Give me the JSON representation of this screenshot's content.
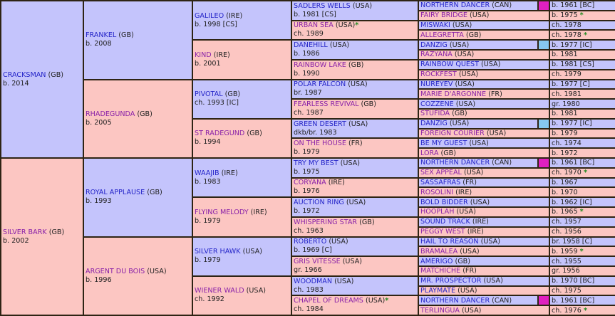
{
  "colors": {
    "sire_bg": "#c4c4fc",
    "dam_bg": "#fcc6c2",
    "swatch_magenta": "#e020c0",
    "swatch_blue": "#86c8f0",
    "star": "#1e8a1e"
  },
  "gen1": [
    {
      "name": "CRACKSMAN",
      "country": "(GB)",
      "info": "b. 2014",
      "sex": "m"
    },
    {
      "name": "SILVER BARK",
      "country": "(GB)",
      "info": "b. 2002",
      "sex": "f"
    }
  ],
  "gen2": [
    {
      "name": "FRANKEL",
      "country": "(GB)",
      "info": "b. 2008",
      "sex": "m"
    },
    {
      "name": "RHADEGUNDA",
      "country": "(GB)",
      "info": "b. 2005",
      "sex": "f"
    },
    {
      "name": "ROYAL APPLAUSE",
      "country": "(GB)",
      "info": "b. 1993",
      "sex": "m"
    },
    {
      "name": "ARGENT DU BOIS",
      "country": "(USA)",
      "info": "b. 1996",
      "sex": "f"
    }
  ],
  "gen3": [
    {
      "name": "GALILEO",
      "country": "(IRE)",
      "info": "b. 1998 [CS]",
      "sex": "m"
    },
    {
      "name": "KIND",
      "country": "(IRE)",
      "info": "b. 2001",
      "sex": "f"
    },
    {
      "name": "PIVOTAL",
      "country": "(GB)",
      "info": "ch. 1993 [IC]",
      "sex": "m"
    },
    {
      "name": "ST RADEGUND",
      "country": "(GB)",
      "info": "b. 1994",
      "sex": "f"
    },
    {
      "name": "WAAJIB",
      "country": "(IRE)",
      "info": "b. 1983",
      "sex": "m"
    },
    {
      "name": "FLYING MELODY",
      "country": "(IRE)",
      "info": "b. 1979",
      "sex": "f"
    },
    {
      "name": "SILVER HAWK",
      "country": "(USA)",
      "info": "b. 1979",
      "sex": "m"
    },
    {
      "name": "WIENER WALD",
      "country": "(USA)",
      "info": "ch. 1992",
      "sex": "f"
    }
  ],
  "gen4": [
    {
      "name": "SADLERS WELLS",
      "country": "(USA)",
      "info": "b. 1981 [CS]",
      "sex": "m"
    },
    {
      "name": "URBAN SEA",
      "country": "(USA)",
      "info": "ch. 1989",
      "sex": "f",
      "star": "*"
    },
    {
      "name": "DANEHILL",
      "country": "(USA)",
      "info": "b. 1986",
      "sex": "m"
    },
    {
      "name": "RAINBOW LAKE",
      "country": "(GB)",
      "info": "b. 1990",
      "sex": "f"
    },
    {
      "name": "POLAR FALCON",
      "country": "(USA)",
      "info": "br. 1987",
      "sex": "m"
    },
    {
      "name": "FEARLESS REVIVAL",
      "country": "(GB)",
      "info": "ch. 1987",
      "sex": "f"
    },
    {
      "name": "GREEN DESERT",
      "country": "(USA)",
      "info": "dkb/br. 1983",
      "sex": "m"
    },
    {
      "name": "ON THE HOUSE",
      "country": "(FR)",
      "info": "b. 1979",
      "sex": "f"
    },
    {
      "name": "TRY MY BEST",
      "country": "(USA)",
      "info": "b. 1975",
      "sex": "m"
    },
    {
      "name": "CORYANA",
      "country": "(IRE)",
      "info": "b. 1976",
      "sex": "f"
    },
    {
      "name": "AUCTION RING",
      "country": "(USA)",
      "info": "b. 1972",
      "sex": "m"
    },
    {
      "name": "WHISPERING STAR",
      "country": "(GB)",
      "info": "ch. 1963",
      "sex": "f"
    },
    {
      "name": "ROBERTO",
      "country": "(USA)",
      "info": "b. 1969 [C]",
      "sex": "m"
    },
    {
      "name": "GRIS VITESSE",
      "country": "(USA)",
      "info": "gr. 1966",
      "sex": "f"
    },
    {
      "name": "WOODMAN",
      "country": "(USA)",
      "info": "ch. 1983",
      "sex": "m"
    },
    {
      "name": "CHAPEL OF DREAMS",
      "country": "(USA)",
      "info": "ch. 1984",
      "sex": "f",
      "star": "*"
    }
  ],
  "gen5": [
    {
      "name": "NORTHERN DANCER",
      "country": "(CAN)",
      "info": "b. 1961 [BC]",
      "sex": "m",
      "swatch": "magenta"
    },
    {
      "name": "FAIRY BRIDGE",
      "country": "(USA)",
      "info": "b. 1975",
      "sex": "f",
      "star": "*"
    },
    {
      "name": "MISWAKI",
      "country": "(USA)",
      "info": "ch. 1978",
      "sex": "m"
    },
    {
      "name": "ALLEGRETTA",
      "country": "(GB)",
      "info": "ch. 1978",
      "sex": "f",
      "star": "*"
    },
    {
      "name": "DANZIG",
      "country": "(USA)",
      "info": "b. 1977 [IC]",
      "sex": "m",
      "swatch": "blue"
    },
    {
      "name": "RAZYANA",
      "country": "(USA)",
      "info": "b. 1981",
      "sex": "f"
    },
    {
      "name": "RAINBOW QUEST",
      "country": "(USA)",
      "info": "b. 1981 [CS]",
      "sex": "m"
    },
    {
      "name": "ROCKFEST",
      "country": "(USA)",
      "info": "ch. 1979",
      "sex": "f"
    },
    {
      "name": "NUREYEV",
      "country": "(USA)",
      "info": "b. 1977 [C]",
      "sex": "m"
    },
    {
      "name": "MARIE D'ARGONNE",
      "country": "(FR)",
      "info": "ch. 1981",
      "sex": "f"
    },
    {
      "name": "COZZENE",
      "country": "(USA)",
      "info": "gr. 1980",
      "sex": "m"
    },
    {
      "name": "STUFIDA",
      "country": "(GB)",
      "info": "b. 1981",
      "sex": "f"
    },
    {
      "name": "DANZIG",
      "country": "(USA)",
      "info": "b. 1977 [IC]",
      "sex": "m",
      "swatch": "blue"
    },
    {
      "name": "FOREIGN COURIER",
      "country": "(USA)",
      "info": "b. 1979",
      "sex": "f"
    },
    {
      "name": "BE MY GUEST",
      "country": "(USA)",
      "info": "ch. 1974",
      "sex": "m"
    },
    {
      "name": "LORA",
      "country": "(GB)",
      "info": "b. 1972",
      "sex": "f"
    },
    {
      "name": "NORTHERN DANCER",
      "country": "(CAN)",
      "info": "b. 1961 [BC]",
      "sex": "m",
      "swatch": "magenta"
    },
    {
      "name": "SEX APPEAL",
      "country": "(USA)",
      "info": "ch. 1970",
      "sex": "f",
      "star": "*"
    },
    {
      "name": "SASSAFRAS",
      "country": "(FR)",
      "info": "b. 1967",
      "sex": "m"
    },
    {
      "name": "ROSOLINI",
      "country": "(IRE)",
      "info": "b. 1970",
      "sex": "f"
    },
    {
      "name": "BOLD BIDDER",
      "country": "(USA)",
      "info": "b. 1962 [IC]",
      "sex": "m"
    },
    {
      "name": "HOOPLAH",
      "country": "(USA)",
      "info": "b. 1965",
      "sex": "f",
      "star": "*"
    },
    {
      "name": "SOUND TRACK",
      "country": "(IRE)",
      "info": "ch. 1957",
      "sex": "m"
    },
    {
      "name": "PEGGY WEST",
      "country": "(IRE)",
      "info": "ch. 1956",
      "sex": "f"
    },
    {
      "name": "HAIL TO REASON",
      "country": "(USA)",
      "info": "br. 1958 [C]",
      "sex": "m"
    },
    {
      "name": "BRAMALEA",
      "country": "(USA)",
      "info": "b. 1959",
      "sex": "f",
      "star": "*"
    },
    {
      "name": "AMERIGO",
      "country": "(GB)",
      "info": "ch. 1955",
      "sex": "m"
    },
    {
      "name": "MATCHICHE",
      "country": "(FR)",
      "info": "gr. 1956",
      "sex": "f"
    },
    {
      "name": "MR. PROSPECTOR",
      "country": "(USA)",
      "info": "b. 1970 [BC]",
      "sex": "m"
    },
    {
      "name": "PLAYMATE",
      "country": "(USA)",
      "info": "ch. 1975",
      "sex": "m"
    },
    {
      "name": "NORTHERN DANCER",
      "country": "(CAN)",
      "info": "b. 1961 [BC]",
      "sex": "m",
      "swatch": "magenta"
    },
    {
      "name": "TERLINGUA",
      "country": "(USA)",
      "info": "ch. 1976",
      "sex": "f",
      "star": "*"
    }
  ]
}
